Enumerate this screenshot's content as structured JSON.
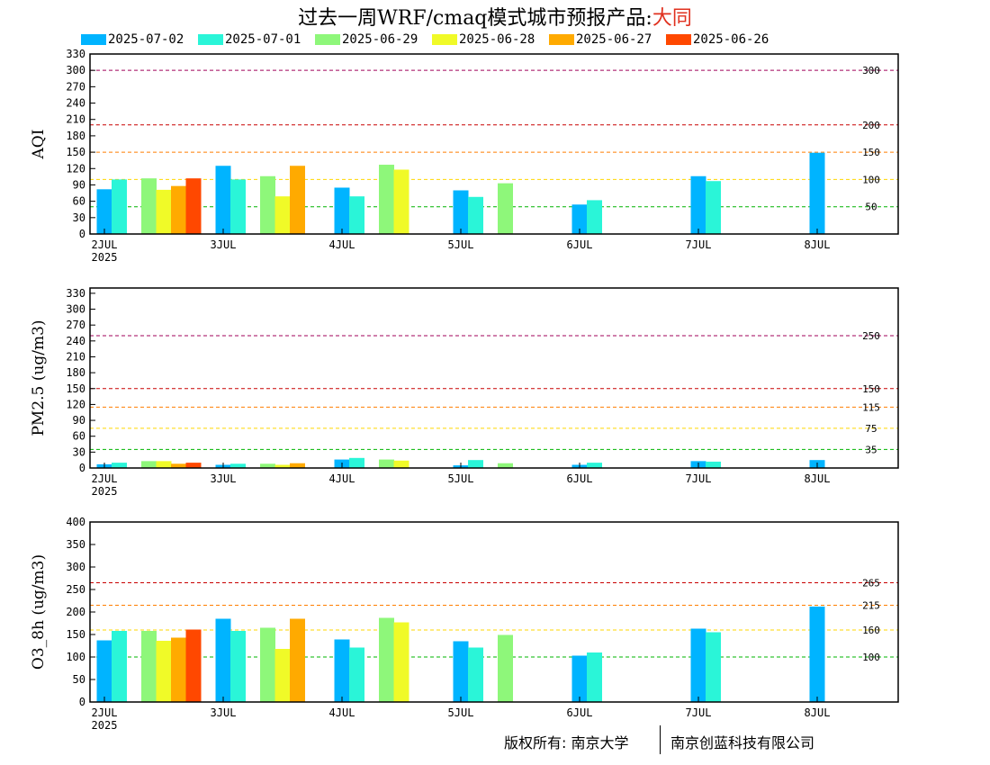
{
  "title": {
    "main": "过去一周WRF/cmaq模式城市预报产品:",
    "city": "大同"
  },
  "legend": [
    {
      "label": "2025-07-02",
      "color": "#00b4ff"
    },
    {
      "label": "2025-07-01",
      "color": "#2af5d8"
    },
    {
      "label": "2025-06-29",
      "color": "#8ef77a"
    },
    {
      "label": "2025-06-28",
      "color": "#f0fa28"
    },
    {
      "label": "2025-06-27",
      "color": "#ffaa00"
    },
    {
      "label": "2025-06-26",
      "color": "#ff4800"
    }
  ],
  "footer": {
    "left": "版权所有: 南京大学",
    "right": "南京创蓝科技有限公司"
  },
  "chart_data": [
    {
      "type": "bar",
      "ylabel": "AQI",
      "ylim": [
        0,
        330
      ],
      "yticks": [
        0,
        30,
        60,
        90,
        120,
        150,
        180,
        210,
        240,
        270,
        300,
        330
      ],
      "x_ticks": [
        "2JUL",
        "3JUL",
        "4JUL",
        "5JUL",
        "6JUL",
        "7JUL",
        "8JUL"
      ],
      "x_year": "2025",
      "thresholds": [
        {
          "value": 300,
          "label": "300",
          "color": "#a0005a"
        },
        {
          "value": 200,
          "label": "200",
          "color": "#c80000"
        },
        {
          "value": 150,
          "label": "150",
          "color": "#ff7e00"
        },
        {
          "value": 100,
          "label": "100",
          "color": "#ffd700"
        },
        {
          "value": 50,
          "label": "50",
          "color": "#00b400"
        }
      ],
      "series": [
        {
          "name": "2025-07-02",
          "values": [
            [
              0.0,
              82
            ],
            [
              1.0,
              125
            ],
            [
              2.0,
              85
            ],
            [
              3.0,
              80
            ],
            [
              4.0,
              54
            ],
            [
              5.0,
              106
            ],
            [
              6.0,
              149
            ]
          ]
        },
        {
          "name": "2025-07-01",
          "values": [
            [
              0.125,
              100
            ],
            [
              1.125,
              100
            ],
            [
              2.125,
              69
            ],
            [
              3.125,
              68
            ],
            [
              4.125,
              62
            ],
            [
              5.125,
              97
            ]
          ]
        },
        {
          "name": "2025-06-29",
          "values": [
            [
              0.375,
              102
            ],
            [
              1.375,
              106
            ],
            [
              2.375,
              127
            ],
            [
              3.375,
              93
            ]
          ]
        },
        {
          "name": "2025-06-28",
          "values": [
            [
              0.5,
              81
            ],
            [
              1.5,
              69
            ],
            [
              2.5,
              118
            ]
          ]
        },
        {
          "name": "2025-06-27",
          "values": [
            [
              0.625,
              88
            ],
            [
              1.625,
              125
            ]
          ]
        },
        {
          "name": "2025-06-26",
          "values": [
            [
              0.75,
              102
            ]
          ]
        }
      ]
    },
    {
      "type": "bar",
      "ylabel": "PM2.5 (ug/m3)",
      "ylim": [
        0,
        340
      ],
      "yticks": [
        0,
        30,
        60,
        90,
        120,
        150,
        180,
        210,
        240,
        270,
        300,
        330
      ],
      "x_ticks": [
        "2JUL",
        "3JUL",
        "4JUL",
        "5JUL",
        "6JUL",
        "7JUL",
        "8JUL"
      ],
      "x_year": "2025",
      "thresholds": [
        {
          "value": 250,
          "label": "250",
          "color": "#a0005a"
        },
        {
          "value": 150,
          "label": "150",
          "color": "#c80000"
        },
        {
          "value": 115,
          "label": "115",
          "color": "#ff7e00"
        },
        {
          "value": 75,
          "label": "75",
          "color": "#ffd700"
        },
        {
          "value": 35,
          "label": "35",
          "color": "#00b400"
        }
      ],
      "series": [
        {
          "name": "2025-07-02",
          "values": [
            [
              0.0,
              7
            ],
            [
              1.0,
              6
            ],
            [
              2.0,
              16
            ],
            [
              3.0,
              5
            ],
            [
              4.0,
              6
            ],
            [
              5.0,
              13
            ],
            [
              6.0,
              15
            ]
          ]
        },
        {
          "name": "2025-07-01",
          "values": [
            [
              0.125,
              10
            ],
            [
              1.125,
              8
            ],
            [
              2.125,
              19
            ],
            [
              3.125,
              15
            ],
            [
              4.125,
              10
            ],
            [
              5.125,
              12
            ]
          ]
        },
        {
          "name": "2025-06-29",
          "values": [
            [
              0.375,
              13
            ],
            [
              1.375,
              8
            ],
            [
              2.375,
              16
            ],
            [
              3.375,
              9
            ]
          ]
        },
        {
          "name": "2025-06-28",
          "values": [
            [
              0.5,
              13
            ],
            [
              1.5,
              6
            ],
            [
              2.5,
              14
            ]
          ]
        },
        {
          "name": "2025-06-27",
          "values": [
            [
              0.625,
              8
            ],
            [
              1.625,
              9
            ]
          ]
        },
        {
          "name": "2025-06-26",
          "values": [
            [
              0.75,
              10
            ]
          ]
        }
      ]
    },
    {
      "type": "bar",
      "ylabel": "O3_8h (ug/m3)",
      "ylim": [
        0,
        400
      ],
      "yticks": [
        0,
        50,
        100,
        150,
        200,
        250,
        300,
        350,
        400
      ],
      "x_ticks": [
        "2JUL",
        "3JUL",
        "4JUL",
        "5JUL",
        "6JUL",
        "7JUL",
        "8JUL"
      ],
      "x_year": "2025",
      "thresholds": [
        {
          "value": 265,
          "label": "265",
          "color": "#c80000"
        },
        {
          "value": 215,
          "label": "215",
          "color": "#ff7e00"
        },
        {
          "value": 160,
          "label": "160",
          "color": "#ffd700"
        },
        {
          "value": 100,
          "label": "100",
          "color": "#00b400"
        }
      ],
      "series": [
        {
          "name": "2025-07-02",
          "values": [
            [
              0.0,
              137
            ],
            [
              1.0,
              185
            ],
            [
              2.0,
              139
            ],
            [
              3.0,
              135
            ],
            [
              4.0,
              103
            ],
            [
              5.0,
              163
            ],
            [
              6.0,
              212
            ]
          ]
        },
        {
          "name": "2025-07-01",
          "values": [
            [
              0.125,
              158
            ],
            [
              1.125,
              158
            ],
            [
              2.125,
              121
            ],
            [
              3.125,
              121
            ],
            [
              4.125,
              110
            ],
            [
              5.125,
              155
            ]
          ]
        },
        {
          "name": "2025-06-29",
          "values": [
            [
              0.375,
              158
            ],
            [
              1.375,
              165
            ],
            [
              2.375,
              187
            ],
            [
              3.375,
              149
            ]
          ]
        },
        {
          "name": "2025-06-28",
          "values": [
            [
              0.5,
              136
            ],
            [
              1.5,
              118
            ],
            [
              2.5,
              177
            ]
          ]
        },
        {
          "name": "2025-06-27",
          "values": [
            [
              0.625,
              143
            ],
            [
              1.625,
              185
            ]
          ]
        },
        {
          "name": "2025-06-26",
          "values": [
            [
              0.75,
              161
            ]
          ]
        }
      ]
    }
  ]
}
